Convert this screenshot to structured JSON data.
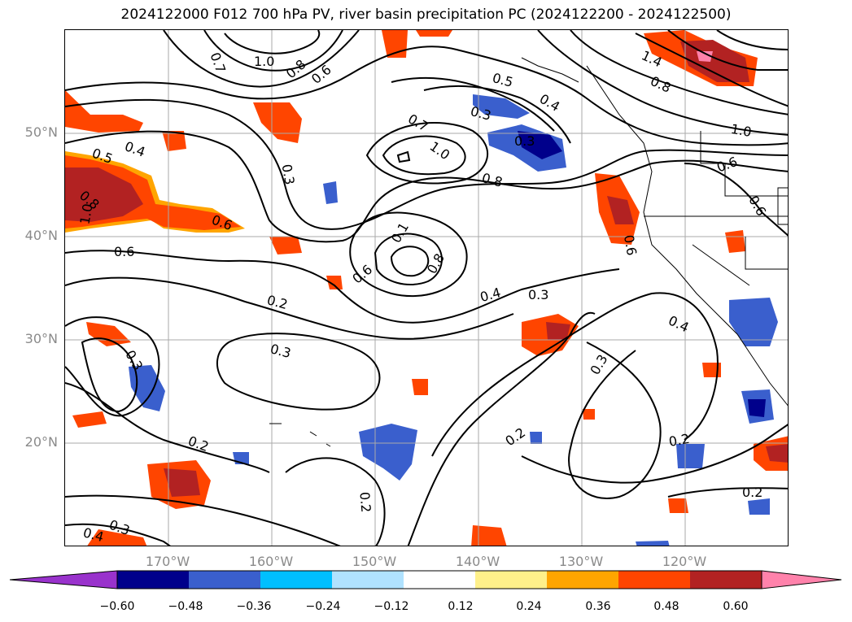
{
  "title": "2024122000 F012 700 hPa PV, river basin precipitation PC (2024122200 - 2024122500)",
  "map": {
    "lat_labels": [
      "50°N",
      "40°N",
      "30°N",
      "20°N"
    ],
    "lon_labels": [
      "170°W",
      "160°W",
      "150°W",
      "140°W",
      "130°W",
      "120°W"
    ],
    "grid": true,
    "gridline_color": "#aaaaaa",
    "contour_color": "#000000",
    "contour_labels": [
      "0.7",
      "1.0",
      "0.8",
      "0.6",
      "0.5",
      "0.4",
      "0.3",
      "0.7",
      "1.0",
      "0.8",
      "0.3",
      "1.4",
      "0.8",
      "1.0",
      "0.6",
      "0.6",
      "0.5",
      "0.4",
      "0.3",
      "0.8",
      "1.0",
      "0.6",
      "0.6",
      "0.6",
      "0.1",
      "0.8",
      "0.6",
      "0.4",
      "0.3",
      "0.3",
      "0.4",
      "0.2",
      "0.3",
      "0.3",
      "0.2",
      "0.2",
      "0.2",
      "0.2",
      "0.3",
      "0.4",
      "0.2"
    ]
  },
  "colorbar": {
    "ticks": [
      "−0.60",
      "−0.48",
      "−0.36",
      "−0.24",
      "−0.12",
      "0.12",
      "0.24",
      "0.36",
      "0.48",
      "0.60"
    ],
    "colors": [
      "#9932cc",
      "#00008b",
      "#3a5fcd",
      "#00bfff",
      "#b0e2ff",
      "#ffffff",
      "#fff08a",
      "#ffa500",
      "#ff4500",
      "#b22222",
      "#ff82ab"
    ],
    "extend": "both"
  }
}
